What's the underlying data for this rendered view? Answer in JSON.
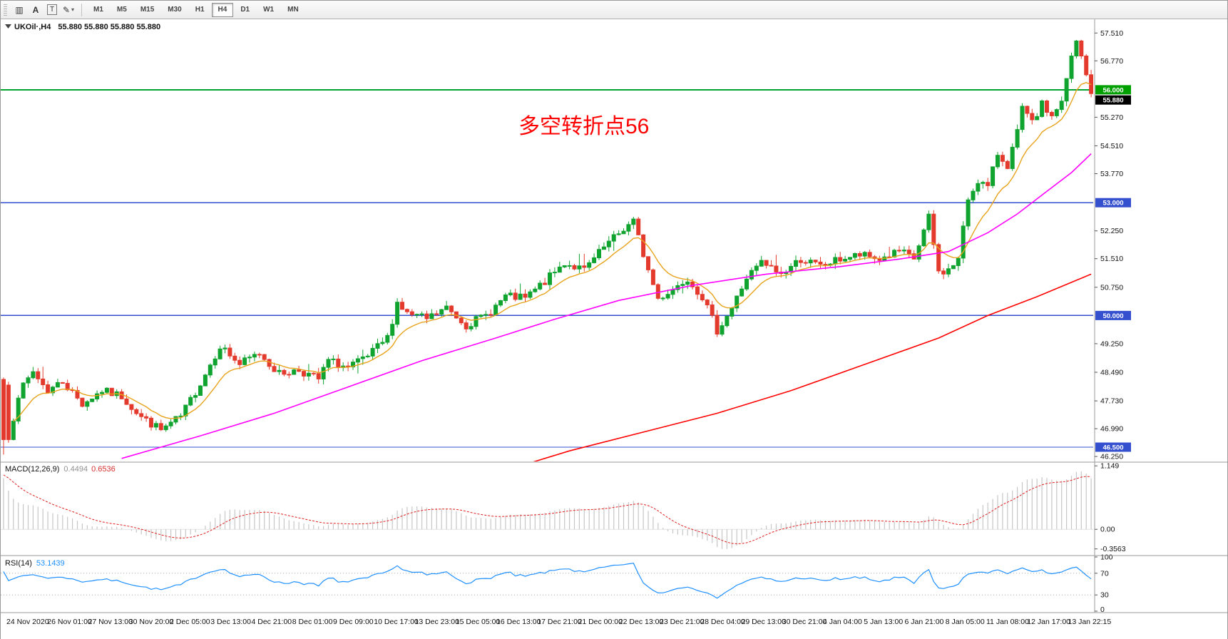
{
  "toolbar": {
    "icons": [
      {
        "glyph": "▥"
      },
      {
        "glyph": "A"
      },
      {
        "glyph": "T"
      },
      {
        "glyph": "✎"
      },
      {
        "glyph": "▾"
      }
    ],
    "timeframes": [
      {
        "label": "M1",
        "active": false
      },
      {
        "label": "M5",
        "active": false
      },
      {
        "label": "M15",
        "active": false
      },
      {
        "label": "M30",
        "active": false
      },
      {
        "label": "H1",
        "active": false
      },
      {
        "label": "H4",
        "active": true
      },
      {
        "label": "D1",
        "active": false
      },
      {
        "label": "W1",
        "active": false
      },
      {
        "label": "MN",
        "active": false
      }
    ]
  },
  "chart": {
    "symbol_label": "UKOil·,H4",
    "ohlc_values": "55.880 55.880 55.880 55.880",
    "annotation": {
      "text": "多空转折点56",
      "color": "#ff0000"
    },
    "macd_name": "MACD(12,26,9)",
    "macd_value": "0.4494",
    "macd_signal": "0.6536",
    "rsi_name": "RSI(14)",
    "rsi_value": "53.1439"
  },
  "chart_data": {
    "type": "candlestick",
    "symbol": "UKOil",
    "timeframe": "H4",
    "bars_count": 222,
    "seed": 7,
    "up_color": "#0fa32f",
    "down_color": "#e43a2e",
    "price_axis": {
      "min": 46.12,
      "max": 57.8,
      "ticks": [
        {
          "label": "57.510",
          "value": 57.51
        },
        {
          "label": "56.770",
          "value": 56.77
        },
        {
          "label": "55.270",
          "value": 55.27
        },
        {
          "label": "54.510",
          "value": 54.51
        },
        {
          "label": "53.770",
          "value": 53.77
        },
        {
          "label": "52.250",
          "value": 52.25
        },
        {
          "label": "51.510",
          "value": 51.51
        },
        {
          "label": "50.750",
          "value": 50.75
        },
        {
          "label": "49.250",
          "value": 49.25
        },
        {
          "label": "48.490",
          "value": 48.49
        },
        {
          "label": "47.730",
          "value": 47.73
        },
        {
          "label": "46.990",
          "value": 46.99
        },
        {
          "label": "46.250",
          "value": 46.25
        }
      ]
    },
    "price_tags": [
      {
        "label": "56.000",
        "place": 56.0,
        "color": "#00a000"
      },
      {
        "label": "55.880",
        "place": 55.73,
        "color": "#000000"
      },
      {
        "label": "53.000",
        "place": 53.0,
        "color": "#3450cf"
      },
      {
        "label": "50.000",
        "place": 50.0,
        "color": "#3450cf"
      },
      {
        "label": "46.500",
        "place": 46.5,
        "color": "#3450cf"
      }
    ],
    "hlines": [
      {
        "value": 56.0,
        "color": "#00a32e",
        "width": 2
      },
      {
        "value": 53.0,
        "color": "#3450cf",
        "width": 1.4
      },
      {
        "value": 50.0,
        "color": "#3450cf",
        "width": 1.4
      },
      {
        "value": 46.5,
        "color": "#3450cf",
        "width": 1.4
      }
    ],
    "first_bar": {
      "open": 48.3,
      "close": 46.7,
      "high": 48.35,
      "low": 46.3
    },
    "close_waypoints": [
      [
        0,
        48.15
      ],
      [
        1,
        46.7
      ],
      [
        3,
        47.9
      ],
      [
        6,
        48.5
      ],
      [
        9,
        48.0
      ],
      [
        12,
        48.25
      ],
      [
        16,
        47.65
      ],
      [
        20,
        48.0
      ],
      [
        24,
        47.85
      ],
      [
        28,
        47.3
      ],
      [
        32,
        46.95
      ],
      [
        36,
        47.3
      ],
      [
        40,
        48.2
      ],
      [
        44,
        49.2
      ],
      [
        48,
        48.7
      ],
      [
        52,
        49.0
      ],
      [
        56,
        48.45
      ],
      [
        60,
        48.55
      ],
      [
        64,
        48.3
      ],
      [
        66,
        48.8
      ],
      [
        70,
        48.6
      ],
      [
        74,
        48.9
      ],
      [
        78,
        49.4
      ],
      [
        80,
        50.35
      ],
      [
        82,
        50.05
      ],
      [
        86,
        49.9
      ],
      [
        90,
        50.2
      ],
      [
        94,
        49.75
      ],
      [
        98,
        50.0
      ],
      [
        102,
        50.5
      ],
      [
        106,
        50.45
      ],
      [
        110,
        50.9
      ],
      [
        114,
        51.4
      ],
      [
        118,
        51.2
      ],
      [
        122,
        51.8
      ],
      [
        126,
        52.3
      ],
      [
        128,
        52.5
      ],
      [
        131,
        51.2
      ],
      [
        133,
        50.45
      ],
      [
        136,
        50.7
      ],
      [
        139,
        51.0
      ],
      [
        142,
        50.5
      ],
      [
        145,
        49.6
      ],
      [
        148,
        50.2
      ],
      [
        151,
        51.0
      ],
      [
        154,
        51.4
      ],
      [
        158,
        51.1
      ],
      [
        162,
        51.5
      ],
      [
        166,
        51.3
      ],
      [
        170,
        51.5
      ],
      [
        174,
        51.6
      ],
      [
        178,
        51.5
      ],
      [
        182,
        51.7
      ],
      [
        185,
        51.5
      ],
      [
        188,
        52.6
      ],
      [
        190,
        51.15
      ],
      [
        192,
        51.2
      ],
      [
        194,
        51.5
      ],
      [
        196,
        53.1
      ],
      [
        198,
        53.6
      ],
      [
        200,
        53.4
      ],
      [
        202,
        54.3
      ],
      [
        204,
        54.0
      ],
      [
        206,
        54.85
      ],
      [
        207,
        55.5
      ],
      [
        209,
        55.1
      ],
      [
        211,
        55.6
      ],
      [
        213,
        55.3
      ],
      [
        215,
        55.7
      ],
      [
        216,
        56.3
      ],
      [
        217,
        56.9
      ],
      [
        218,
        57.3
      ],
      [
        219,
        56.9
      ],
      [
        220,
        56.4
      ],
      [
        221,
        55.9
      ]
    ],
    "moving_averages": {
      "fast": {
        "type": "ema",
        "period": 10,
        "seed": 47.1,
        "color": "#e8a31c"
      },
      "mid": {
        "color": "#ff00ff",
        "waypoints": [
          [
            24,
            46.2
          ],
          [
            40,
            46.8
          ],
          [
            55,
            47.4
          ],
          [
            70,
            48.1
          ],
          [
            85,
            48.8
          ],
          [
            100,
            49.4
          ],
          [
            112,
            49.9
          ],
          [
            125,
            50.4
          ],
          [
            140,
            50.8
          ],
          [
            155,
            51.1
          ],
          [
            170,
            51.3
          ],
          [
            182,
            51.5
          ],
          [
            192,
            51.7
          ],
          [
            200,
            52.2
          ],
          [
            206,
            52.7
          ],
          [
            212,
            53.3
          ],
          [
            217,
            53.8
          ],
          [
            221,
            54.3
          ]
        ]
      },
      "slow": {
        "color": "#ff0000",
        "waypoints": [
          [
            105,
            46.0
          ],
          [
            115,
            46.4
          ],
          [
            130,
            46.9
          ],
          [
            145,
            47.4
          ],
          [
            160,
            48.0
          ],
          [
            175,
            48.7
          ],
          [
            190,
            49.4
          ],
          [
            200,
            50.0
          ],
          [
            210,
            50.5
          ],
          [
            221,
            51.1
          ]
        ]
      }
    },
    "macd": {
      "fast": 12,
      "slow": 26,
      "signal": 9,
      "seed_fast": 48.75,
      "seed_slow": 47.7,
      "seed_signal": 1.0,
      "hist_color": "#c6c6c6",
      "signal_color": "#e02020",
      "range": {
        "min": -0.45,
        "max": 1.19
      },
      "axis": [
        {
          "label": "1.149",
          "value": 1.149
        },
        {
          "label": "0.00",
          "value": 0
        },
        {
          "label": "-0.3563",
          "value": -0.3563
        }
      ]
    },
    "rsi": {
      "period": 14,
      "color": "#1e90ff",
      "seed_gain": 0.28,
      "seed_loss": 0.105,
      "start_value": 73,
      "levels": [
        70,
        30
      ],
      "axis": [
        {
          "label": "100",
          "value": 100
        },
        {
          "label": "70",
          "value": 70
        },
        {
          "label": "30",
          "value": 30
        },
        {
          "label": "0",
          "value": 0
        }
      ]
    },
    "time_labels": [
      "24 Nov 2020",
      "26 Nov 01:00",
      "27 Nov 13:00",
      "30 Nov 20:00",
      "2 Dec 05:00",
      "3 Dec 13:00",
      "4 Dec 21:00",
      "8 Dec 01:00",
      "9 Dec 09:00",
      "10 Dec 17:00",
      "13 Dec 23:00",
      "15 Dec 05:00",
      "16 Dec 13:00",
      "17 Dec 21:00",
      "21 Dec 00:00",
      "22 Dec 13:00",
      "23 Dec 21:00",
      "28 Dec 04:00",
      "29 Dec 13:00",
      "30 Dec 21:00",
      "4 Jan 04:00",
      "5 Jan 13:00",
      "6 Jan 21:00",
      "8 Jan 05:00",
      "11 Jan 08:00",
      "12 Jan 17:00",
      "13 Jan 22:15"
    ]
  }
}
